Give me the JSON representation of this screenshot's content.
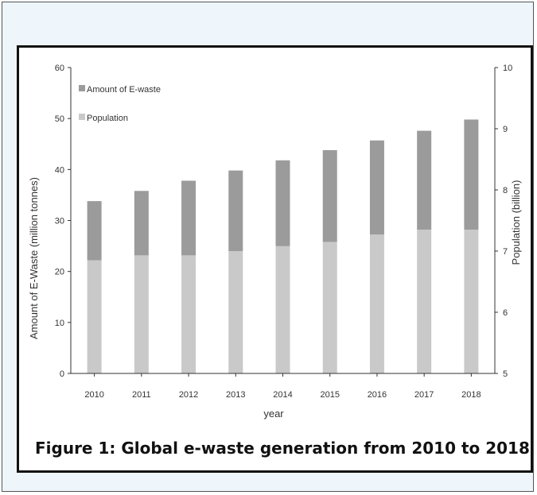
{
  "figure": {
    "caption": "Figure 1: Global e-waste generation from 2010 to 2018"
  },
  "chart_data": {
    "type": "bar",
    "stacked": true,
    "categories": [
      "2010",
      "2011",
      "2012",
      "2013",
      "2014",
      "2015",
      "2016",
      "2017",
      "2018"
    ],
    "series": [
      {
        "name": "Population",
        "axis": "right",
        "unit": "billion",
        "values": [
          6.85,
          6.93,
          6.93,
          7.0,
          7.08,
          7.15,
          7.27,
          7.35,
          7.35
        ],
        "color": "#c9c9c9"
      },
      {
        "name": "Amount of E-waste",
        "axis": "left",
        "unit": "million tonnes",
        "values": [
          33.8,
          35.8,
          37.8,
          39.8,
          41.8,
          43.8,
          45.7,
          47.6,
          49.8
        ],
        "color": "#9b9b9b"
      }
    ],
    "xlabel": "year",
    "ylabel": "Amount of E-Waste (million tonnes)",
    "y2label": "Population (billion)",
    "ylim": [
      0,
      60
    ],
    "y2lim": [
      5,
      10
    ],
    "yticks": [
      "0",
      "10",
      "20",
      "30",
      "40",
      "50",
      "60"
    ],
    "y2ticks": [
      "5",
      "6",
      "7",
      "8",
      "9",
      "10"
    ],
    "grid": false,
    "legend_position": "top-left"
  }
}
